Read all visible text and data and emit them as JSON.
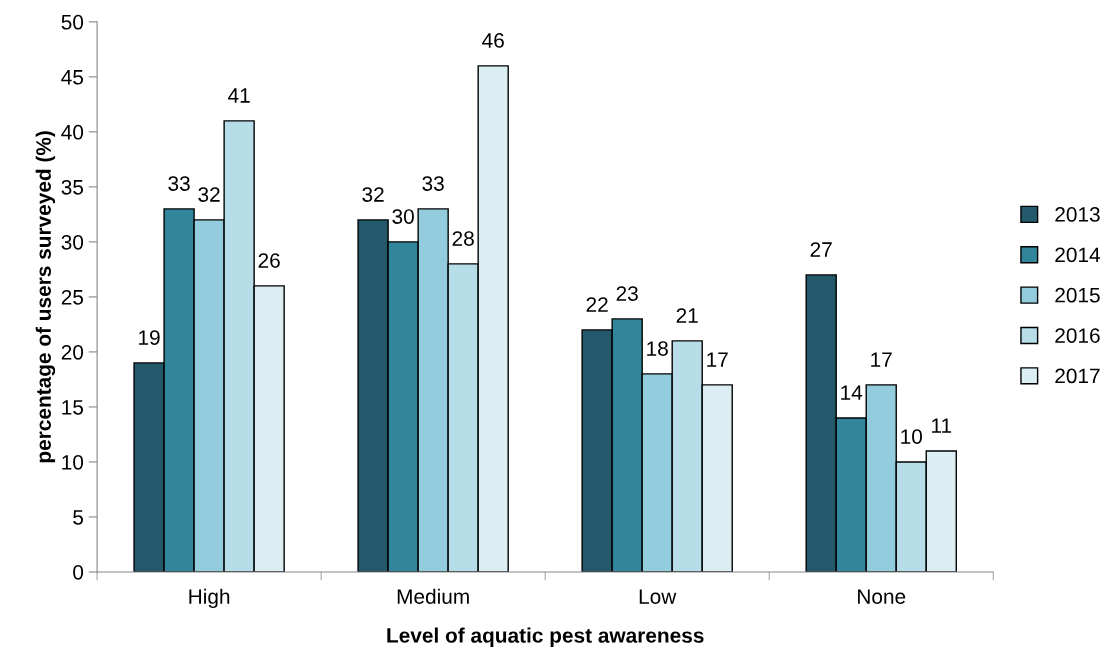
{
  "chart_data": {
    "type": "bar",
    "xlabel": "Level of aquatic pest awareness",
    "ylabel": "percentage of users surveyed (%)",
    "categories": [
      "High",
      "Medium",
      "Low",
      "None"
    ],
    "series": [
      {
        "name": "2013",
        "color": "#23596b",
        "values": [
          19,
          32,
          22,
          27
        ]
      },
      {
        "name": "2014",
        "color": "#31869b",
        "values": [
          33,
          30,
          23,
          14
        ]
      },
      {
        "name": "2015",
        "color": "#93cddd",
        "values": [
          32,
          33,
          18,
          17
        ]
      },
      {
        "name": "2016",
        "color": "#b7dee8",
        "values": [
          41,
          28,
          21,
          10
        ]
      },
      {
        "name": "2017",
        "color": "#dbeef4",
        "values": [
          26,
          46,
          17,
          11
        ]
      }
    ],
    "ylim": [
      0,
      50
    ],
    "yticks": [
      0,
      5,
      10,
      15,
      20,
      25,
      30,
      35,
      40,
      45,
      50
    ],
    "data_labels": true,
    "legend": "right",
    "grid": false
  }
}
